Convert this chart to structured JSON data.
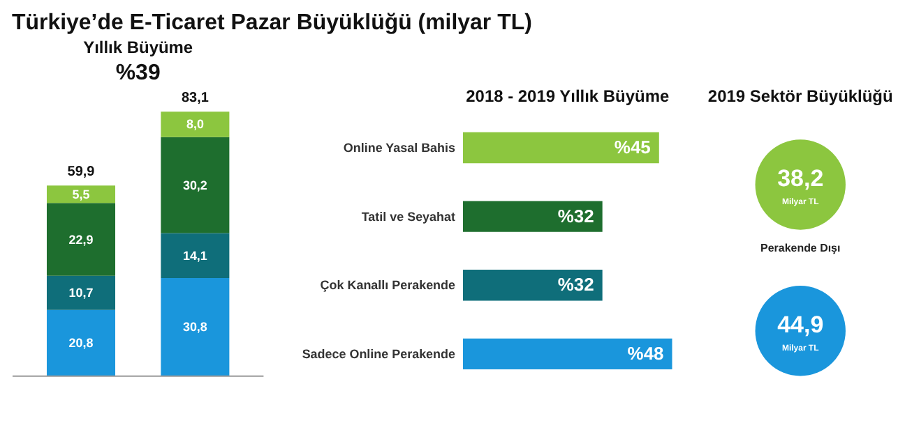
{
  "chart_data": [
    {
      "type": "bar",
      "stacked": true,
      "title": "Türkiye’de E-Ticaret Pazar Büyüklüğü (milyar TL)",
      "subtitle": "Yıllık Büyüme",
      "annotations": [
        "%39"
      ],
      "categories": [
        null,
        null
      ],
      "totals": [
        "59,9",
        "83,1"
      ],
      "series": [
        {
          "color": "#1a96dc",
          "values": [
            20.8,
            30.8
          ],
          "value_labels": [
            "20,8",
            "30,8"
          ]
        },
        {
          "color": "#0f6e7a",
          "values": [
            10.7,
            14.1
          ],
          "value_labels": [
            "10,7",
            "14,1"
          ]
        },
        {
          "color": "#1e6e2e",
          "values": [
            22.9,
            30.2
          ],
          "value_labels": [
            "22,9",
            "30,2"
          ]
        },
        {
          "color": "#8cc63f",
          "values": [
            5.5,
            8.0
          ],
          "value_labels": [
            "5,5",
            "8,0"
          ]
        }
      ]
    },
    {
      "type": "bar",
      "orientation": "horizontal",
      "title": "2018 - 2019 Yıllık Büyüme",
      "categories": [
        "Online Yasal Bahis",
        "Tatil ve Seyahat",
        "Çok Kanallı Perakende",
        "Sadece Online Perakende"
      ],
      "values": [
        45,
        32,
        32,
        48
      ],
      "value_labels": [
        "%45",
        "%32",
        "%32",
        "%48"
      ],
      "colors": [
        "#8cc63f",
        "#1e6e2e",
        "#0f6e7a",
        "#1a96dc"
      ]
    },
    {
      "type": "other",
      "title": "2019 Sektör Büyüklüğü",
      "categories": [
        "Perakende Dışı",
        null
      ],
      "values": [
        38.2,
        44.9
      ],
      "value_labels": [
        "38,2",
        "44,9"
      ],
      "colors": [
        "#8cc63f",
        "#1a96dc"
      ],
      "annotations": [
        "Milyar TL",
        "Milyar TL"
      ]
    }
  ]
}
